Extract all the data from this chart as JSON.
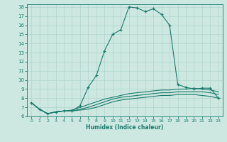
{
  "xlabel": "Humidex (Indice chaleur)",
  "ylabel": "",
  "bg_color": "#cce8e0",
  "line_color": "#1a7a6e",
  "grid_color": "#b0d4cc",
  "xlim": [
    -0.5,
    23.5
  ],
  "ylim": [
    6,
    18.3
  ],
  "yticks": [
    6,
    7,
    8,
    9,
    10,
    11,
    12,
    13,
    14,
    15,
    16,
    17,
    18
  ],
  "xticks": [
    0,
    1,
    2,
    3,
    4,
    5,
    6,
    7,
    8,
    9,
    10,
    11,
    12,
    13,
    14,
    15,
    16,
    17,
    18,
    19,
    20,
    21,
    22,
    23
  ],
  "line1_x": [
    0,
    1,
    2,
    3,
    4,
    5,
    6,
    7,
    8,
    9,
    10,
    11,
    12,
    13,
    14,
    15,
    16,
    17,
    18,
    19,
    20,
    21,
    22,
    23
  ],
  "line1_y": [
    7.5,
    6.8,
    6.3,
    6.5,
    6.6,
    6.6,
    7.2,
    9.2,
    10.5,
    13.2,
    15.0,
    15.5,
    18.0,
    17.9,
    17.5,
    17.8,
    17.2,
    16.0,
    9.5,
    9.2,
    9.0,
    9.1,
    9.1,
    8.0
  ],
  "line2_x": [
    0,
    1,
    2,
    3,
    4,
    5,
    6,
    7,
    8,
    9,
    10,
    11,
    12,
    13,
    14,
    15,
    16,
    17,
    18,
    19,
    20,
    21,
    22,
    23
  ],
  "line2_y": [
    7.5,
    6.8,
    6.3,
    6.5,
    6.6,
    6.7,
    7.0,
    7.3,
    7.6,
    7.9,
    8.1,
    8.3,
    8.5,
    8.6,
    8.7,
    8.8,
    8.9,
    8.9,
    9.0,
    9.0,
    9.1,
    9.0,
    8.9,
    8.7
  ],
  "line3_x": [
    0,
    1,
    2,
    3,
    4,
    5,
    6,
    7,
    8,
    9,
    10,
    11,
    12,
    13,
    14,
    15,
    16,
    17,
    18,
    19,
    20,
    21,
    22,
    23
  ],
  "line3_y": [
    7.5,
    6.8,
    6.3,
    6.5,
    6.6,
    6.6,
    6.8,
    7.0,
    7.3,
    7.6,
    7.9,
    8.1,
    8.2,
    8.3,
    8.4,
    8.5,
    8.6,
    8.6,
    8.7,
    8.7,
    8.7,
    8.7,
    8.6,
    8.4
  ],
  "line4_x": [
    0,
    1,
    2,
    3,
    4,
    5,
    6,
    7,
    8,
    9,
    10,
    11,
    12,
    13,
    14,
    15,
    16,
    17,
    18,
    19,
    20,
    21,
    22,
    23
  ],
  "line4_y": [
    7.5,
    6.8,
    6.3,
    6.5,
    6.6,
    6.6,
    6.7,
    6.8,
    7.0,
    7.3,
    7.6,
    7.8,
    7.9,
    8.0,
    8.1,
    8.2,
    8.3,
    8.3,
    8.4,
    8.4,
    8.4,
    8.3,
    8.2,
    8.0
  ]
}
